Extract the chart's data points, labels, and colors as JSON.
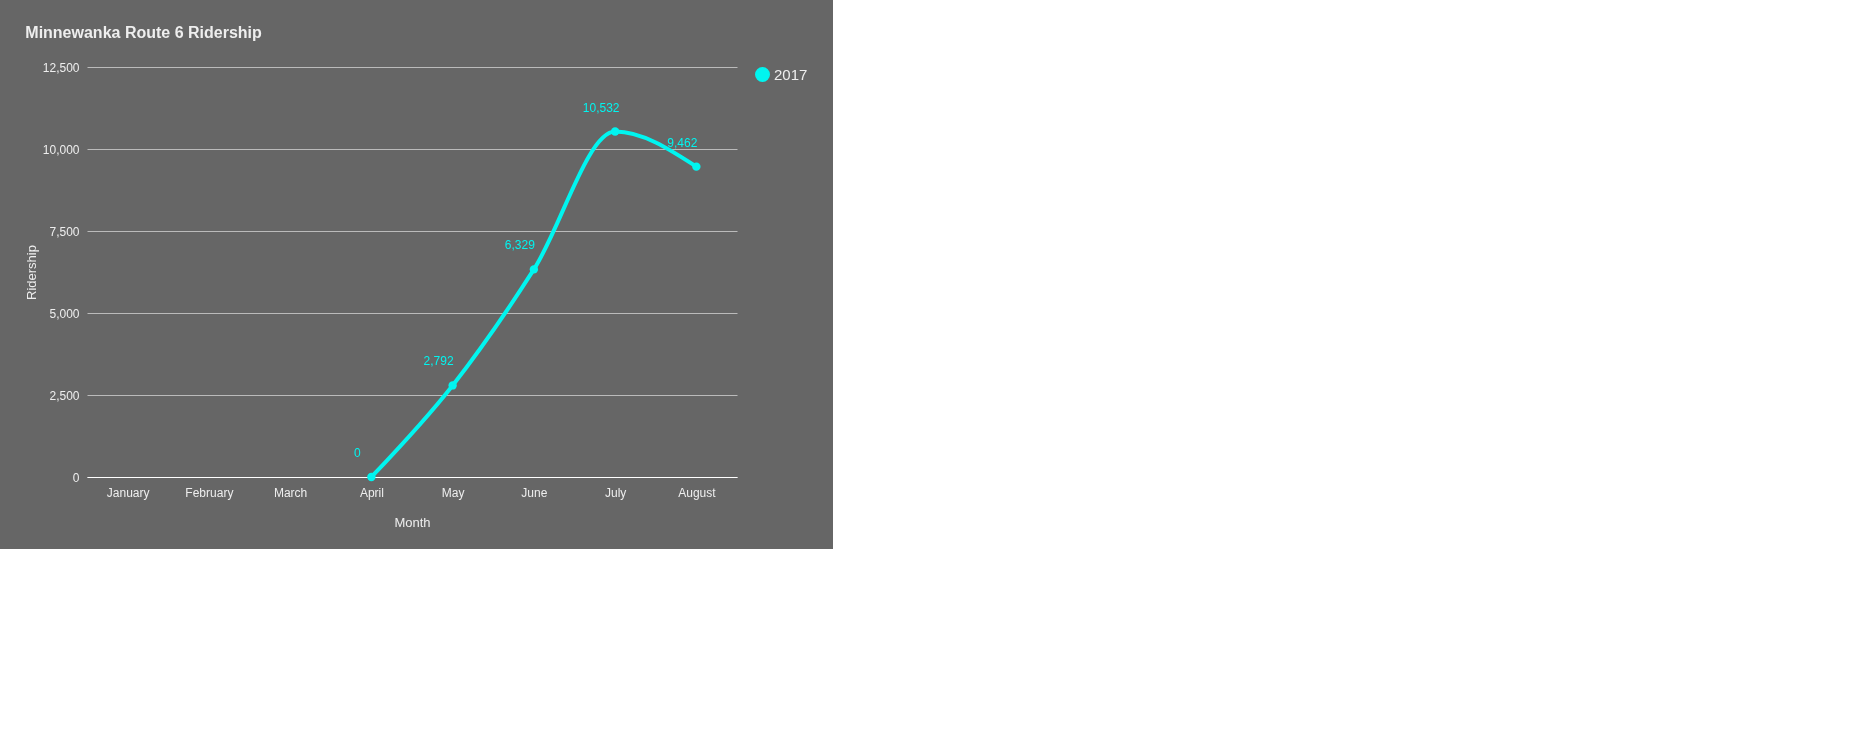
{
  "chart_data": {
    "type": "line",
    "title": "Minnewanka Route 6 Ridership",
    "xlabel": "Month",
    "ylabel": "Ridership",
    "categories": [
      "January",
      "February",
      "March",
      "April",
      "May",
      "June",
      "July",
      "August"
    ],
    "series": [
      {
        "name": "2017",
        "color": "#00f5f0",
        "values": [
          null,
          null,
          null,
          0,
          2792,
          6329,
          10532,
          9462
        ],
        "value_labels": [
          null,
          null,
          null,
          "0",
          "2,792",
          "6,329",
          "10,532",
          "9,462"
        ]
      }
    ],
    "ylim": [
      0,
      12500
    ],
    "yticks": [
      0,
      {
        "value": 2500,
        "label": "2,500"
      },
      {
        "value": 5000,
        "label": "5,000"
      },
      {
        "value": 7500,
        "label": "7,500"
      },
      {
        "value": 10000,
        "label": "10,000"
      },
      {
        "value": 12500,
        "label": "12,500"
      }
    ],
    "grid": "y",
    "legend": "top right",
    "marker": "circle",
    "line_style": "solid"
  }
}
